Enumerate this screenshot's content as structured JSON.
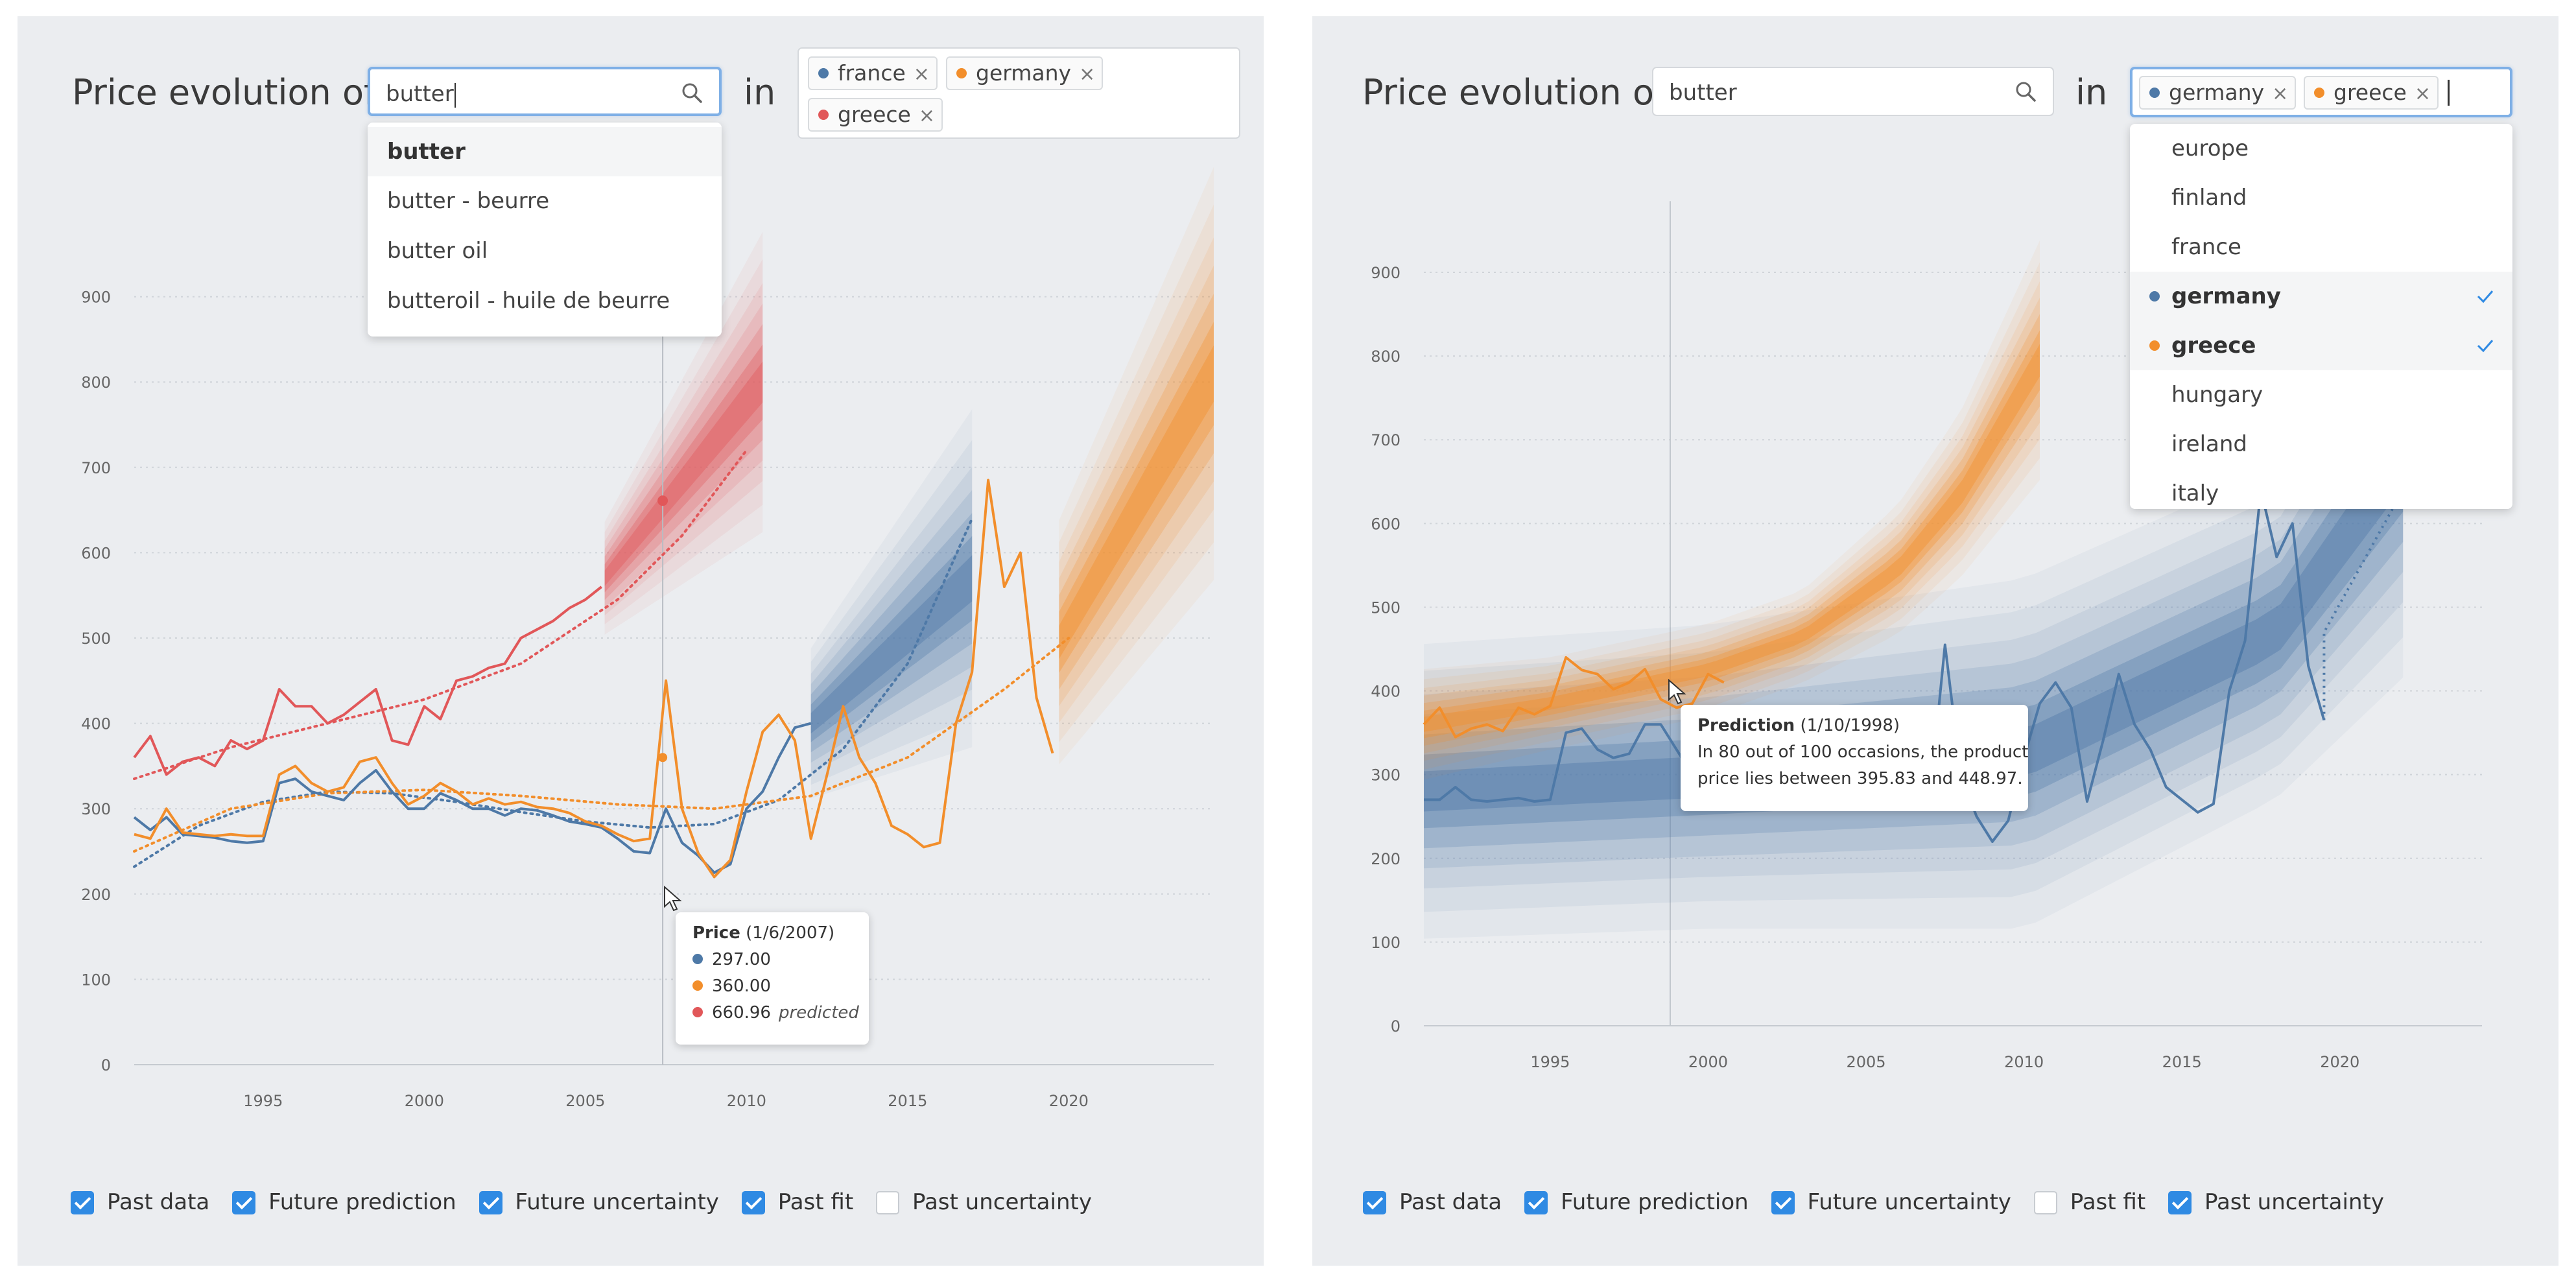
{
  "panels": [
    {
      "title": "Price evolution of",
      "in_label": "in",
      "search": {
        "value": "butter",
        "placeholder": ""
      },
      "product_suggestions": [
        "butter",
        "butter - beurre",
        "butter oil",
        "butteroil - huile de beurre"
      ],
      "selected_countries": [
        {
          "label": "france",
          "color": "#4e79a7",
          "remove": "×"
        },
        {
          "label": "germany",
          "color": "#f28e2b",
          "remove": "×"
        },
        {
          "label": "greece",
          "color": "#e15759",
          "remove": "×"
        }
      ],
      "tooltip": {
        "title": "Price",
        "date": "(1/6/2007)",
        "rows": [
          {
            "value": "297.00",
            "color": "#4e79a7",
            "note": ""
          },
          {
            "value": "360.00",
            "color": "#f28e2b",
            "note": ""
          },
          {
            "value": "660.96",
            "color": "#e15759",
            "note": "predicted"
          }
        ]
      },
      "checkboxes": [
        {
          "label": "Past data",
          "checked": true
        },
        {
          "label": "Future prediction",
          "checked": true
        },
        {
          "label": "Future uncertainty",
          "checked": true
        },
        {
          "label": "Past fit",
          "checked": true
        },
        {
          "label": "Past uncertainty",
          "checked": false
        }
      ]
    },
    {
      "title": "Price evolution of",
      "in_label": "in",
      "search": {
        "value": "butter",
        "placeholder": ""
      },
      "selected_countries": [
        {
          "label": "germany",
          "color": "#4e79a7",
          "remove": "×"
        },
        {
          "label": "greece",
          "color": "#f28e2b",
          "remove": "×"
        }
      ],
      "country_options": [
        {
          "label": "europe",
          "selected": false,
          "color": ""
        },
        {
          "label": "finland",
          "selected": false,
          "color": ""
        },
        {
          "label": "france",
          "selected": false,
          "color": ""
        },
        {
          "label": "germany",
          "selected": true,
          "color": "#4e79a7"
        },
        {
          "label": "greece",
          "selected": true,
          "color": "#f28e2b"
        },
        {
          "label": "hungary",
          "selected": false,
          "color": ""
        },
        {
          "label": "ireland",
          "selected": false,
          "color": ""
        },
        {
          "label": "italy",
          "selected": false,
          "color": ""
        }
      ],
      "tooltip": {
        "title": "Prediction",
        "date": "(1/10/1998)",
        "body": [
          "In 80 out of 100 occasions, the product",
          "price lies between 395.83 and 448.97."
        ]
      },
      "checkboxes": [
        {
          "label": "Past data",
          "checked": true
        },
        {
          "label": "Future prediction",
          "checked": true
        },
        {
          "label": "Future uncertainty",
          "checked": true
        },
        {
          "label": "Past fit",
          "checked": false
        },
        {
          "label": "Past uncertainty",
          "checked": true
        }
      ]
    }
  ],
  "chart_data": [
    {
      "type": "line",
      "title": "",
      "xlabel": "",
      "ylabel": "",
      "xlim": [
        1991,
        2024.5
      ],
      "ylim": [
        0,
        1000
      ],
      "xticks": [
        1995,
        2000,
        2005,
        2010,
        2015,
        2020
      ],
      "yticks": [
        0,
        100,
        200,
        300,
        400,
        500,
        600,
        700,
        800,
        900
      ],
      "grid": "horizontal dotted",
      "hover_year": 2007.4,
      "series": [
        {
          "name": "france",
          "color": "#4e79a7",
          "x": [
            1991.0,
            1991.5,
            1992.0,
            1992.5,
            1993.0,
            1993.5,
            1994.0,
            1994.5,
            1995.0,
            1995.5,
            1996.0,
            1996.5,
            1997.0,
            1997.5,
            1998.0,
            1998.5,
            1999.0,
            1999.5,
            2000.0,
            2000.5,
            2001.0,
            2001.5,
            2002.0,
            2002.5,
            2003.0,
            2003.5,
            2004.0,
            2004.5,
            2005.0,
            2005.5,
            2006.0,
            2006.5,
            2007.0,
            2007.5,
            2008.0,
            2008.5,
            2009.0,
            2009.5,
            2010.0,
            2010.5,
            2011.0,
            2011.5,
            2012.0
          ],
          "y": [
            290,
            275,
            290,
            270,
            268,
            266,
            262,
            260,
            262,
            330,
            335,
            320,
            315,
            310,
            330,
            345,
            320,
            300,
            300,
            318,
            310,
            300,
            300,
            292,
            300,
            298,
            292,
            285,
            282,
            278,
            265,
            250,
            248,
            300,
            260,
            245,
            225,
            235,
            300,
            320,
            360,
            395,
            400
          ],
          "fit_x": [
            1991,
            1993,
            1995,
            1997,
            1999,
            2001,
            2003,
            2005,
            2007,
            2009,
            2011,
            2013,
            2015,
            2017
          ],
          "fit_y": [
            232,
            280,
            308,
            320,
            318,
            308,
            296,
            285,
            278,
            282,
            310,
            370,
            470,
            640
          ],
          "prediction_band": {
            "x": [
              2012,
              2017
            ],
            "lower": [
              360,
              480
            ],
            "upper": [
              440,
              660
            ]
          }
        },
        {
          "name": "germany",
          "color": "#f28e2b",
          "x": [
            1991.0,
            1991.5,
            1992.0,
            1992.5,
            1993.0,
            1993.5,
            1994.0,
            1994.5,
            1995.0,
            1995.5,
            1996.0,
            1996.5,
            1997.0,
            1997.5,
            1998.0,
            1998.5,
            1999.0,
            1999.5,
            2000.0,
            2000.5,
            2001.0,
            2001.5,
            2002.0,
            2002.5,
            2003.0,
            2003.5,
            2004.0,
            2004.5,
            2005.0,
            2005.5,
            2006.0,
            2006.5,
            2007.0,
            2007.5,
            2008.0,
            2008.5,
            2009.0,
            2009.5,
            2010.0,
            2010.5,
            2011.0,
            2011.5,
            2012.0,
            2012.5,
            2013.0,
            2013.5,
            2014.0,
            2014.5,
            2015.0,
            2015.5,
            2016.0,
            2016.5,
            2017.0,
            2017.5,
            2018.0,
            2018.5,
            2019.0,
            2019.5
          ],
          "y": [
            270,
            265,
            300,
            272,
            270,
            268,
            270,
            268,
            268,
            340,
            350,
            330,
            320,
            325,
            355,
            360,
            330,
            305,
            315,
            330,
            320,
            305,
            312,
            305,
            308,
            302,
            300,
            295,
            285,
            280,
            270,
            262,
            265,
            450,
            300,
            248,
            220,
            240,
            320,
            390,
            410,
            380,
            265,
            340,
            420,
            360,
            330,
            280,
            270,
            255,
            260,
            400,
            460,
            685,
            560,
            600,
            430,
            365
          ],
          "fit_x": [
            1991,
            1994,
            1997,
            2000,
            2003,
            2006,
            2009,
            2012,
            2015,
            2018,
            2020
          ],
          "fit_y": [
            250,
            300,
            318,
            322,
            315,
            305,
            300,
            315,
            360,
            440,
            500
          ],
          "prediction_band": {
            "x": [
              2019.7,
              2024.5
            ],
            "lower": [
              430,
              700
            ],
            "upper": [
              560,
              920
            ]
          }
        },
        {
          "name": "greece",
          "color": "#e15759",
          "x": [
            1991.0,
            1991.5,
            1992.0,
            1992.5,
            1993.0,
            1993.5,
            1994.0,
            1994.5,
            1995.0,
            1995.5,
            1996.0,
            1996.5,
            1997.0,
            1997.5,
            1998.0,
            1998.5,
            1999.0,
            1999.5,
            2000.0,
            2000.5,
            2001.0,
            2001.5,
            2002.0,
            2002.5,
            2003.0,
            2003.5,
            2004.0,
            2004.5,
            2005.0,
            2005.5
          ],
          "y": [
            360,
            385,
            340,
            355,
            360,
            350,
            380,
            370,
            380,
            440,
            420,
            420,
            400,
            410,
            425,
            440,
            380,
            375,
            420,
            405,
            450,
            455,
            465,
            470,
            500,
            510,
            520,
            535,
            545,
            560
          ],
          "fit_x": [
            1991,
            1994,
            1997,
            2000,
            2003,
            2006,
            2008,
            2010
          ],
          "fit_y": [
            335,
            372,
            400,
            428,
            470,
            545,
            620,
            720
          ],
          "prediction_band": {
            "x": [
              2005.6,
              2010.5
            ],
            "lower": [
              540,
              720
            ],
            "upper": [
              600,
              880
            ]
          },
          "hover_point": {
            "x": 2007.4,
            "y": 660.96
          }
        }
      ]
    },
    {
      "type": "line",
      "title": "",
      "xlabel": "",
      "ylabel": "",
      "xlim": [
        1991,
        2024.5
      ],
      "ylim": [
        0,
        900
      ],
      "xticks": [
        1995,
        2000,
        2005,
        2010,
        2015,
        2020
      ],
      "yticks": [
        0,
        100,
        200,
        300,
        400,
        500,
        600,
        700,
        800,
        900
      ],
      "grid": "horizontal dotted",
      "hover_year": 1998.8,
      "series": [
        {
          "name": "germany",
          "color": "#4e79a7",
          "x": [
            1991.0,
            1991.5,
            1992.0,
            1992.5,
            1993.0,
            1993.5,
            1994.0,
            1994.5,
            1995.0,
            1995.5,
            1996.0,
            1996.5,
            1997.0,
            1997.5,
            1998.0,
            1998.5,
            1999.0,
            1999.5,
            2000.0,
            2000.5,
            2001.0,
            2001.5,
            2002.0,
            2002.5,
            2003.0,
            2003.5,
            2004.0,
            2004.5,
            2005.0,
            2005.5,
            2006.0,
            2006.5,
            2007.0,
            2007.5,
            2008.0,
            2008.5,
            2009.0,
            2009.5,
            2010.0,
            2010.5,
            2011.0,
            2011.5,
            2012.0,
            2012.5,
            2013.0,
            2013.5,
            2014.0,
            2014.5,
            2015.0,
            2015.5,
            2016.0,
            2016.5,
            2017.0,
            2017.5,
            2018.0,
            2018.5,
            2019.0,
            2019.5
          ],
          "y": [
            270,
            270,
            285,
            270,
            268,
            270,
            272,
            268,
            270,
            350,
            355,
            330,
            320,
            325,
            360,
            360,
            330,
            300,
            315,
            330,
            320,
            305,
            310,
            300,
            305,
            300,
            296,
            290,
            280,
            278,
            270,
            262,
            265,
            455,
            300,
            250,
            220,
            245,
            320,
            385,
            410,
            380,
            268,
            340,
            420,
            360,
            330,
            285,
            270,
            255,
            265,
            400,
            460,
            640,
            560,
            600,
            430,
            365
          ],
          "band": {
            "x": [
              1991,
              2000,
              2010,
              2018,
              2022
            ],
            "lower": [
              200,
              215,
              230,
              380,
              560
            ],
            "upper": [
              360,
              380,
              420,
              560,
              800
            ]
          }
        },
        {
          "name": "greece",
          "color": "#f28e2b",
          "x": [
            1991.0,
            1991.5,
            1992.0,
            1992.5,
            1993.0,
            1993.5,
            1994.0,
            1994.5,
            1995.0,
            1995.5,
            1996.0,
            1996.5,
            1997.0,
            1997.5,
            1998.0,
            1998.5,
            1999.0,
            1999.5,
            2000.0,
            2000.5
          ],
          "y": [
            360,
            380,
            345,
            355,
            360,
            352,
            380,
            372,
            382,
            440,
            425,
            420,
            402,
            410,
            426,
            390,
            380,
            385,
            420,
            410
          ],
          "band": {
            "x": [
              1991,
              1995,
              2000,
              2003,
              2006,
              2008,
              2010.5
            ],
            "lower": [
              330,
              360,
              400,
              440,
              510,
              590,
              730
            ],
            "upper": [
              390,
              410,
              450,
              490,
              580,
              680,
              860
            ]
          }
        }
      ],
      "hover_point": {
        "x": 1998.8,
        "lower": 395.83,
        "upper": 448.97
      }
    }
  ]
}
